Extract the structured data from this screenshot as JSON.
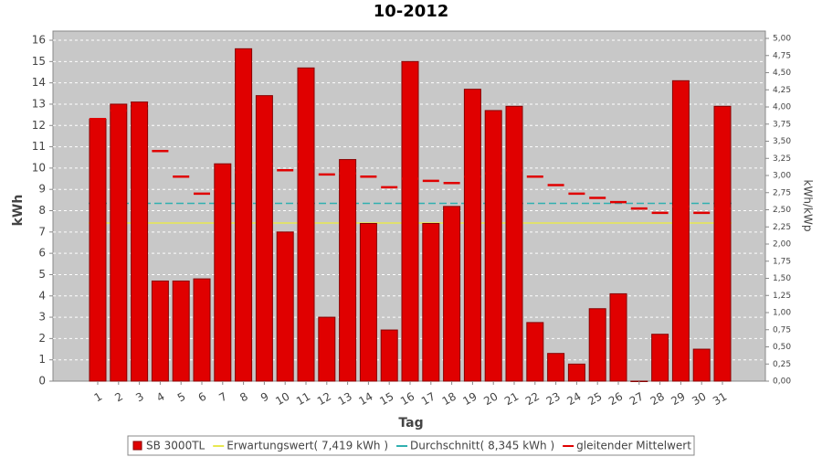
{
  "chart_data": {
    "type": "bar",
    "title": "10-2012",
    "x_label": "Tag",
    "y_label": "kWh",
    "y2_label": "kWh/kWp",
    "categories": [
      "1",
      "2",
      "3",
      "4",
      "5",
      "6",
      "7",
      "8",
      "9",
      "10",
      "11",
      "12",
      "13",
      "14",
      "15",
      "16",
      "17",
      "18",
      "19",
      "20",
      "21",
      "22",
      "23",
      "24",
      "25",
      "26",
      "27",
      "28",
      "29",
      "30",
      "31"
    ],
    "series": [
      {
        "name": "SB 3000TL",
        "color": "#e00000",
        "values": [
          12.3,
          13.0,
          13.1,
          4.7,
          4.7,
          4.8,
          10.2,
          15.6,
          13.4,
          7.0,
          14.7,
          3.0,
          10.4,
          7.4,
          2.4,
          15.0,
          7.4,
          8.2,
          13.7,
          12.7,
          12.9,
          2.75,
          1.3,
          0.8,
          3.4,
          4.1,
          0.0,
          2.2,
          14.1,
          1.5,
          12.9
        ]
      },
      {
        "name": "gleitender Mittelwert",
        "type": "dash",
        "color": "#e00000",
        "values": [
          12.3,
          12.7,
          12.8,
          10.8,
          9.6,
          8.8,
          9.0,
          9.8,
          10.2,
          9.9,
          10.3,
          9.7,
          9.75,
          9.6,
          9.1,
          9.5,
          9.4,
          9.3,
          9.6,
          9.75,
          9.9,
          9.6,
          9.2,
          8.8,
          8.6,
          8.4,
          8.1,
          7.9,
          8.2,
          7.9,
          8.1
        ]
      }
    ],
    "reference_lines": [
      {
        "name": "Erwartungswert( 7,419 kWh )",
        "color": "#e8e850",
        "value": 7.419
      },
      {
        "name": "Durchschnitt( 8,345 kWh )",
        "color": "#30b0b0",
        "value": 8.345
      }
    ],
    "legend_order": [
      "series.0",
      "reference_lines.0",
      "reference_lines.1",
      "series.1"
    ],
    "ylim": [
      0,
      16.43
    ],
    "yticks": [
      0,
      1,
      2,
      3,
      4,
      5,
      6,
      7,
      8,
      9,
      10,
      11,
      12,
      13,
      14,
      15,
      16
    ],
    "y2lim": [
      0,
      5.107
    ],
    "y2ticks": [
      {
        "value": 0,
        "label": "0,00"
      },
      {
        "value": 0.25,
        "label": "0,25"
      },
      {
        "value": 0.5,
        "label": "0,50"
      },
      {
        "value": 0.75,
        "label": "0,75"
      },
      {
        "value": 1,
        "label": "1,00"
      },
      {
        "value": 1.25,
        "label": "1,25"
      },
      {
        "value": 1.5,
        "label": "1,50"
      },
      {
        "value": 1.75,
        "label": "1,75"
      },
      {
        "value": 2,
        "label": "2,00"
      },
      {
        "value": 2.25,
        "label": "2,25"
      },
      {
        "value": 2.5,
        "label": "2,50"
      },
      {
        "value": 2.75,
        "label": "2,75"
      },
      {
        "value": 3,
        "label": "3,00"
      },
      {
        "value": 3.25,
        "label": "3,25"
      },
      {
        "value": 3.5,
        "label": "3,50"
      },
      {
        "value": 3.75,
        "label": "3,75"
      },
      {
        "value": 4,
        "label": "4,00"
      },
      {
        "value": 4.25,
        "label": "4,25"
      },
      {
        "value": 4.5,
        "label": "4,50"
      },
      {
        "value": 4.75,
        "label": "4,75"
      },
      {
        "value": 5,
        "label": "5,00"
      }
    ],
    "grid": true
  }
}
